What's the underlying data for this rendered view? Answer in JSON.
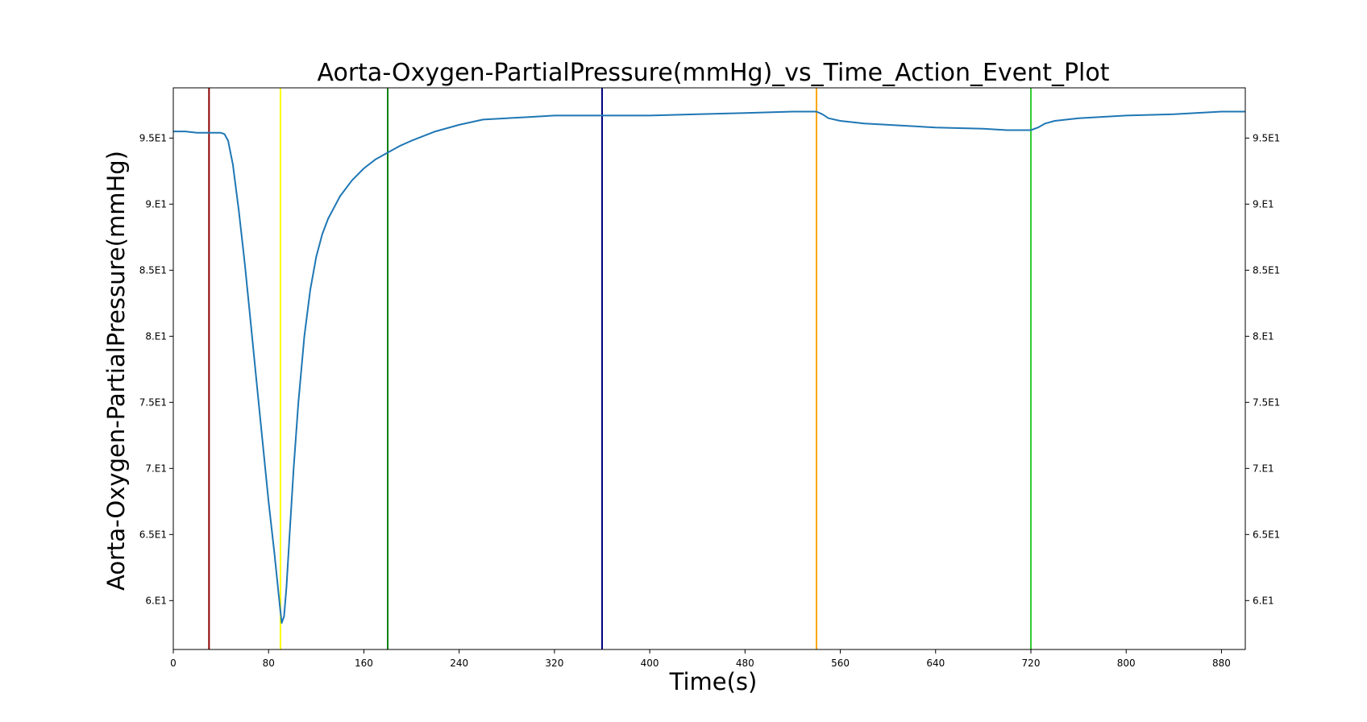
{
  "chart_data": {
    "type": "line",
    "title": "Aorta-Oxygen-PartialPressure(mmHg)_vs_Time_Action_Event_Plot",
    "xlabel": "Time(s)",
    "ylabel": "Aorta-Oxygen-PartialPressure(mmHg)",
    "xlim": [
      0,
      900
    ],
    "ylim": [
      56.3,
      98.8
    ],
    "x_ticks": [
      0,
      80,
      160,
      240,
      320,
      400,
      480,
      560,
      640,
      720,
      800,
      880
    ],
    "x_tick_labels": [
      "0",
      "80",
      "160",
      "240",
      "320",
      "400",
      "480",
      "560",
      "640",
      "720",
      "800",
      "880"
    ],
    "y_ticks": [
      60,
      65,
      70,
      75,
      80,
      85,
      90,
      95
    ],
    "y_tick_labels": [
      "6.E1",
      "6.5E1",
      "7.E1",
      "7.5E1",
      "8.E1",
      "8.5E1",
      "9.E1",
      "9.5E1"
    ],
    "right_axis_ticks": true,
    "grid": false,
    "series": [
      {
        "color": "#1f77b4",
        "points": [
          [
            0,
            95.5
          ],
          [
            10,
            95.5
          ],
          [
            20,
            95.4
          ],
          [
            30,
            95.4
          ],
          [
            40,
            95.4
          ],
          [
            43,
            95.3
          ],
          [
            46,
            94.8
          ],
          [
            50,
            93.0
          ],
          [
            55,
            89.5
          ],
          [
            60,
            85.5
          ],
          [
            65,
            81.0
          ],
          [
            70,
            76.5
          ],
          [
            75,
            72.0
          ],
          [
            80,
            67.5
          ],
          [
            85,
            63.5
          ],
          [
            89,
            60.0
          ],
          [
            91,
            58.3
          ],
          [
            93,
            58.8
          ],
          [
            95,
            61.0
          ],
          [
            98,
            65.5
          ],
          [
            101,
            70.0
          ],
          [
            105,
            75.0
          ],
          [
            110,
            80.0
          ],
          [
            115,
            83.5
          ],
          [
            120,
            86.0
          ],
          [
            125,
            87.7
          ],
          [
            130,
            88.9
          ],
          [
            140,
            90.6
          ],
          [
            150,
            91.8
          ],
          [
            160,
            92.7
          ],
          [
            170,
            93.4
          ],
          [
            180,
            93.9
          ],
          [
            190,
            94.4
          ],
          [
            200,
            94.8
          ],
          [
            220,
            95.5
          ],
          [
            240,
            96.0
          ],
          [
            260,
            96.4
          ],
          [
            280,
            96.5
          ],
          [
            300,
            96.6
          ],
          [
            320,
            96.7
          ],
          [
            360,
            96.7
          ],
          [
            400,
            96.7
          ],
          [
            440,
            96.8
          ],
          [
            480,
            96.9
          ],
          [
            520,
            97.0
          ],
          [
            540,
            97.0
          ],
          [
            545,
            96.8
          ],
          [
            550,
            96.5
          ],
          [
            560,
            96.3
          ],
          [
            580,
            96.1
          ],
          [
            600,
            96.0
          ],
          [
            640,
            95.8
          ],
          [
            680,
            95.7
          ],
          [
            700,
            95.6
          ],
          [
            720,
            95.6
          ],
          [
            726,
            95.8
          ],
          [
            732,
            96.1
          ],
          [
            740,
            96.3
          ],
          [
            760,
            96.5
          ],
          [
            800,
            96.7
          ],
          [
            840,
            96.8
          ],
          [
            880,
            97.0
          ],
          [
            900,
            97.0
          ]
        ]
      }
    ],
    "event_lines": [
      {
        "x": 30,
        "color": "#8b0000"
      },
      {
        "x": 90,
        "color": "#ffff00"
      },
      {
        "x": 180,
        "color": "#008000"
      },
      {
        "x": 360,
        "color": "#000080"
      },
      {
        "x": 540,
        "color": "#ffa500"
      },
      {
        "x": 720,
        "color": "#32cd32"
      }
    ]
  }
}
